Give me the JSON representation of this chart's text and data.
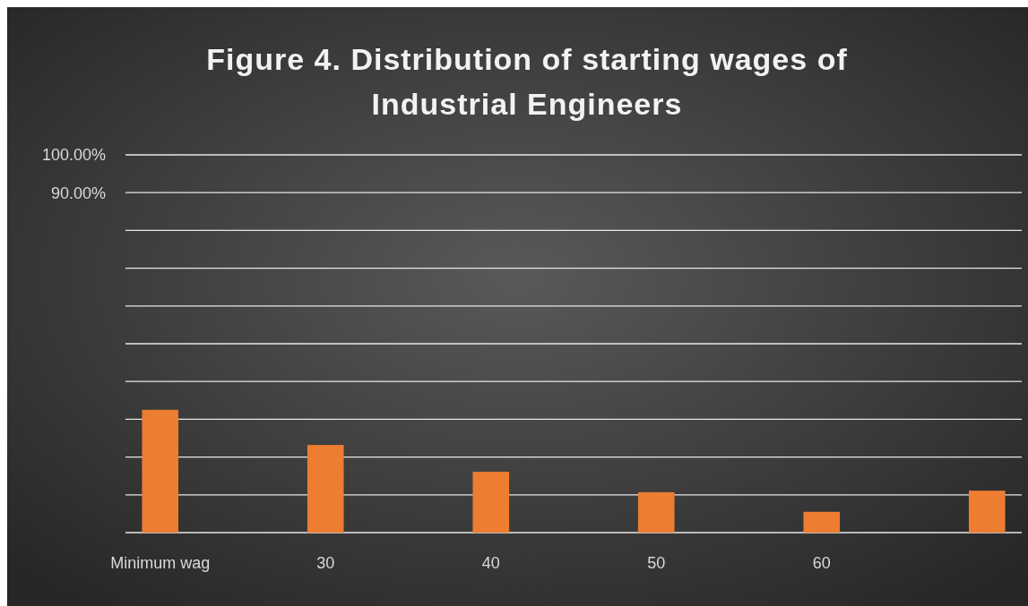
{
  "chart_data": {
    "type": "bar",
    "title": "Figure 4. Distribution of starting wages of Industrial Engineers",
    "categories": [
      "Minimum wag",
      "30",
      "40",
      "50",
      "60",
      null
    ],
    "values": [
      32.5,
      23.2,
      16.1,
      10.7,
      5.5,
      11.1
    ],
    "color": "#ed7d31",
    "ylim": [
      0,
      100
    ],
    "yticks": [
      {
        "value": 0,
        "label": null
      },
      {
        "value": 10,
        "label": null
      },
      {
        "value": 20,
        "label": null
      },
      {
        "value": 30,
        "label": null
      },
      {
        "value": 40,
        "label": null
      },
      {
        "value": 50,
        "label": null
      },
      {
        "value": 60,
        "label": null
      },
      {
        "value": 70,
        "label": null
      },
      {
        "value": 80,
        "label": null
      },
      {
        "value": 90,
        "label": "90.00%"
      },
      {
        "value": 100,
        "label": "100.00%"
      }
    ],
    "grid": "y"
  }
}
